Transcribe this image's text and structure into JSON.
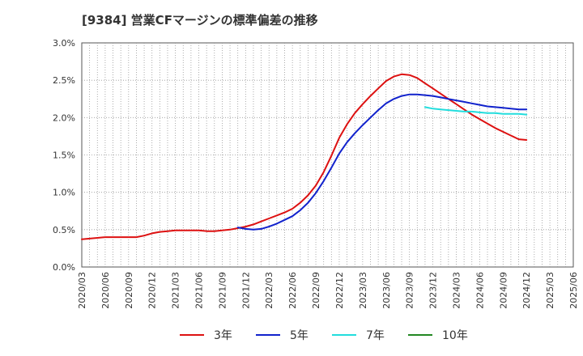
{
  "title": "[9384]  営業CFマージンの標準偏差の推移",
  "chart_data": {
    "type": "line",
    "title": "[9384]  営業CFマージンの標準偏差の推移",
    "xlabel": "",
    "ylabel": "",
    "y_ticks": [
      "0.0%",
      "0.5%",
      "1.0%",
      "1.5%",
      "2.0%",
      "2.5%",
      "3.0%"
    ],
    "ylim": [
      0,
      3.0
    ],
    "x_ticks": [
      "2020/03",
      "2020/06",
      "2020/09",
      "2020/12",
      "2021/03",
      "2021/06",
      "2021/09",
      "2021/12",
      "2022/03",
      "2022/06",
      "2022/09",
      "2022/12",
      "2023/03",
      "2023/06",
      "2023/09",
      "2023/12",
      "2024/03",
      "2024/06",
      "2024/09",
      "2024/12",
      "2025/03",
      "2025/06"
    ],
    "grid": true,
    "legend_position": "bottom",
    "series": [
      {
        "name": "3年",
        "color": "#dd1111",
        "points": [
          [
            "2020/03",
            0.37
          ],
          [
            "2020/04",
            0.38
          ],
          [
            "2020/05",
            0.39
          ],
          [
            "2020/06",
            0.4
          ],
          [
            "2020/07",
            0.4
          ],
          [
            "2020/08",
            0.4
          ],
          [
            "2020/09",
            0.4
          ],
          [
            "2020/10",
            0.4
          ],
          [
            "2020/11",
            0.42
          ],
          [
            "2020/12",
            0.45
          ],
          [
            "2021/01",
            0.47
          ],
          [
            "2021/02",
            0.48
          ],
          [
            "2021/03",
            0.49
          ],
          [
            "2021/04",
            0.49
          ],
          [
            "2021/05",
            0.49
          ],
          [
            "2021/06",
            0.49
          ],
          [
            "2021/07",
            0.48
          ],
          [
            "2021/08",
            0.48
          ],
          [
            "2021/09",
            0.49
          ],
          [
            "2021/10",
            0.5
          ],
          [
            "2021/11",
            0.52
          ],
          [
            "2021/12",
            0.54
          ],
          [
            "2022/01",
            0.57
          ],
          [
            "2022/02",
            0.61
          ],
          [
            "2022/03",
            0.65
          ],
          [
            "2022/04",
            0.69
          ],
          [
            "2022/05",
            0.73
          ],
          [
            "2022/06",
            0.78
          ],
          [
            "2022/07",
            0.86
          ],
          [
            "2022/08",
            0.96
          ],
          [
            "2022/09",
            1.09
          ],
          [
            "2022/10",
            1.27
          ],
          [
            "2022/11",
            1.49
          ],
          [
            "2022/12",
            1.73
          ],
          [
            "2023/01",
            1.91
          ],
          [
            "2023/02",
            2.06
          ],
          [
            "2023/03",
            2.18
          ],
          [
            "2023/04",
            2.29
          ],
          [
            "2023/05",
            2.39
          ],
          [
            "2023/06",
            2.49
          ],
          [
            "2023/07",
            2.55
          ],
          [
            "2023/08",
            2.58
          ],
          [
            "2023/09",
            2.57
          ],
          [
            "2023/10",
            2.53
          ],
          [
            "2023/11",
            2.46
          ],
          [
            "2023/12",
            2.39
          ],
          [
            "2024/01",
            2.32
          ],
          [
            "2024/02",
            2.25
          ],
          [
            "2024/03",
            2.18
          ],
          [
            "2024/04",
            2.11
          ],
          [
            "2024/05",
            2.04
          ],
          [
            "2024/06",
            1.98
          ],
          [
            "2024/07",
            1.92
          ],
          [
            "2024/08",
            1.86
          ],
          [
            "2024/09",
            1.81
          ],
          [
            "2024/10",
            1.76
          ],
          [
            "2024/11",
            1.71
          ],
          [
            "2024/12",
            1.7
          ]
        ]
      },
      {
        "name": "5年",
        "color": "#1122cc",
        "points": [
          [
            "2021/11",
            0.53
          ],
          [
            "2021/12",
            0.51
          ],
          [
            "2022/01",
            0.5
          ],
          [
            "2022/02",
            0.51
          ],
          [
            "2022/03",
            0.54
          ],
          [
            "2022/04",
            0.58
          ],
          [
            "2022/05",
            0.63
          ],
          [
            "2022/06",
            0.68
          ],
          [
            "2022/07",
            0.76
          ],
          [
            "2022/08",
            0.86
          ],
          [
            "2022/09",
            0.99
          ],
          [
            "2022/10",
            1.15
          ],
          [
            "2022/11",
            1.33
          ],
          [
            "2022/12",
            1.52
          ],
          [
            "2023/01",
            1.67
          ],
          [
            "2023/02",
            1.79
          ],
          [
            "2023/03",
            1.9
          ],
          [
            "2023/04",
            2.0
          ],
          [
            "2023/05",
            2.1
          ],
          [
            "2023/06",
            2.19
          ],
          [
            "2023/07",
            2.25
          ],
          [
            "2023/08",
            2.29
          ],
          [
            "2023/09",
            2.31
          ],
          [
            "2023/10",
            2.31
          ],
          [
            "2023/11",
            2.3
          ],
          [
            "2023/12",
            2.29
          ],
          [
            "2024/01",
            2.27
          ],
          [
            "2024/02",
            2.25
          ],
          [
            "2024/03",
            2.23
          ],
          [
            "2024/04",
            2.21
          ],
          [
            "2024/05",
            2.19
          ],
          [
            "2024/06",
            2.17
          ],
          [
            "2024/07",
            2.15
          ],
          [
            "2024/08",
            2.14
          ],
          [
            "2024/09",
            2.13
          ],
          [
            "2024/10",
            2.12
          ],
          [
            "2024/11",
            2.11
          ],
          [
            "2024/12",
            2.11
          ]
        ]
      },
      {
        "name": "7年",
        "color": "#22dddd",
        "points": [
          [
            "2023/11",
            2.14
          ],
          [
            "2023/12",
            2.12
          ],
          [
            "2024/01",
            2.11
          ],
          [
            "2024/02",
            2.1
          ],
          [
            "2024/03",
            2.09
          ],
          [
            "2024/04",
            2.08
          ],
          [
            "2024/05",
            2.08
          ],
          [
            "2024/06",
            2.07
          ],
          [
            "2024/07",
            2.06
          ],
          [
            "2024/08",
            2.06
          ],
          [
            "2024/09",
            2.05
          ],
          [
            "2024/10",
            2.05
          ],
          [
            "2024/11",
            2.05
          ],
          [
            "2024/12",
            2.04
          ]
        ]
      },
      {
        "name": "10年",
        "color": "#228822",
        "points": []
      }
    ]
  }
}
